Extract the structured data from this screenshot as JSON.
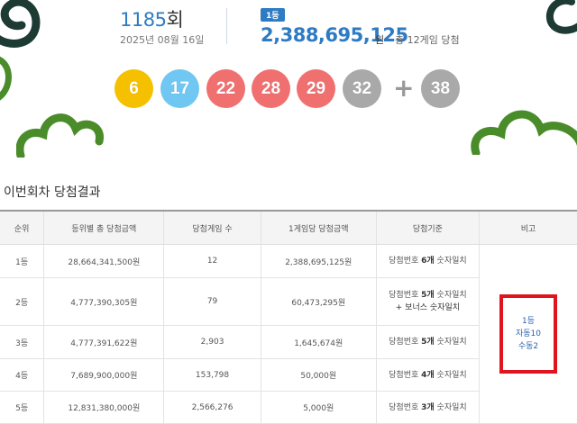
{
  "draw": {
    "round_number": "1185",
    "round_suffix": "회",
    "date": "2025년 08월 16일"
  },
  "jackpot": {
    "rank_badge": "1등",
    "amount": "2,388,695,125",
    "unit": "원",
    "winners_note": "총 12게임 당첨"
  },
  "numbers": {
    "main": [
      {
        "value": "6",
        "color": "#f5c000"
      },
      {
        "value": "17",
        "color": "#6fc7f2"
      },
      {
        "value": "22",
        "color": "#f07070"
      },
      {
        "value": "28",
        "color": "#f07070"
      },
      {
        "value": "29",
        "color": "#f07070"
      },
      {
        "value": "32",
        "color": "#a9a9a9"
      }
    ],
    "plus": "+",
    "bonus": {
      "value": "38",
      "color": "#a9a9a9"
    }
  },
  "results": {
    "title": "이번회차 당첨결과",
    "headers": [
      "순위",
      "등위별 총 당첨금액",
      "당첨게임 수",
      "1게임당 당첨금액",
      "당첨기준",
      "비고"
    ],
    "rows": [
      {
        "rank": "1등",
        "total": "28,664,341,500원",
        "games": "12",
        "per_game": "2,388,695,125원",
        "crit_pre": "당첨번호 ",
        "crit_bold": "6개",
        "crit_post": " 숫자일치",
        "crit_extra": ""
      },
      {
        "rank": "2등",
        "total": "4,777,390,305원",
        "games": "79",
        "per_game": "60,473,295원",
        "crit_pre": "당첨번호 ",
        "crit_bold": "5개",
        "crit_post": " 숫자일치",
        "crit_extra": "+ 보너스 숫자일치"
      },
      {
        "rank": "3등",
        "total": "4,777,391,622원",
        "games": "2,903",
        "per_game": "1,645,674원",
        "crit_pre": "당첨번호 ",
        "crit_bold": "5개",
        "crit_post": " 숫자일치",
        "crit_extra": ""
      },
      {
        "rank": "4등",
        "total": "7,689,900,000원",
        "games": "153,798",
        "per_game": "50,000원",
        "crit_pre": "당첨번호 ",
        "crit_bold": "4개",
        "crit_post": " 숫자일치",
        "crit_extra": ""
      },
      {
        "rank": "5등",
        "total": "12,831,380,000원",
        "games": "2,566,276",
        "per_game": "5,000원",
        "crit_pre": "당첨번호 ",
        "crit_bold": "3개",
        "crit_post": " 숫자일치",
        "crit_extra": ""
      }
    ],
    "note": {
      "line1": "1등",
      "line2": "자동10",
      "line3": "수동2"
    }
  },
  "colors": {
    "accent_blue": "#2e7bc4",
    "deco_green": "#4a8c2a",
    "deco_dark": "#1d3b33",
    "highlight_red": "#e0141e"
  }
}
